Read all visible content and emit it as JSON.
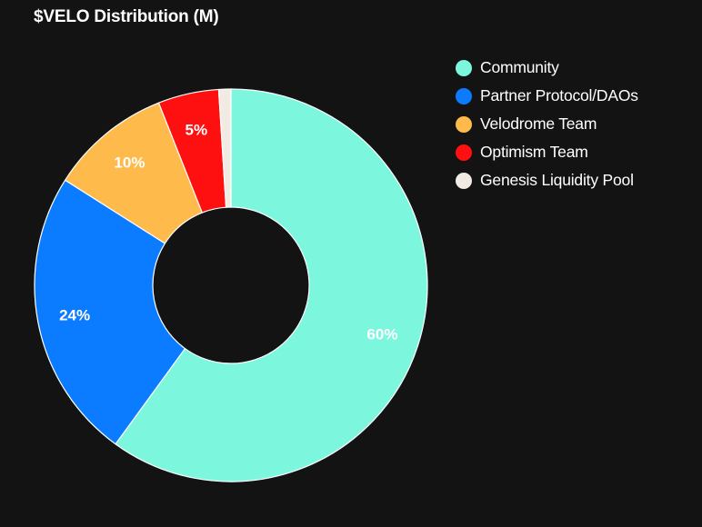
{
  "chart_data": {
    "type": "pie",
    "title": "$VELO Distribution (M)",
    "hole": true,
    "legend_position": "right",
    "slices": [
      {
        "label": "Community",
        "value": 60,
        "data_label": "60%",
        "color": "#7cf7de",
        "label_color": "#ffffff"
      },
      {
        "label": "Partner Protocol/DAOs",
        "value": 24,
        "data_label": "24%",
        "color": "#0b7bff",
        "label_color": "#ffffff"
      },
      {
        "label": "Velodrome Team",
        "value": 10,
        "data_label": "10%",
        "color": "#ffba4c",
        "label_color": "#ffffff"
      },
      {
        "label": "Optimism Team",
        "value": 5,
        "data_label": "5%",
        "color": "#ff1010",
        "label_color": "#ffffff"
      },
      {
        "label": "Genesis Liquidity Pool",
        "value": 1,
        "data_label": "",
        "color": "#f2ebe4",
        "label_color": "#ffffff"
      }
    ]
  }
}
